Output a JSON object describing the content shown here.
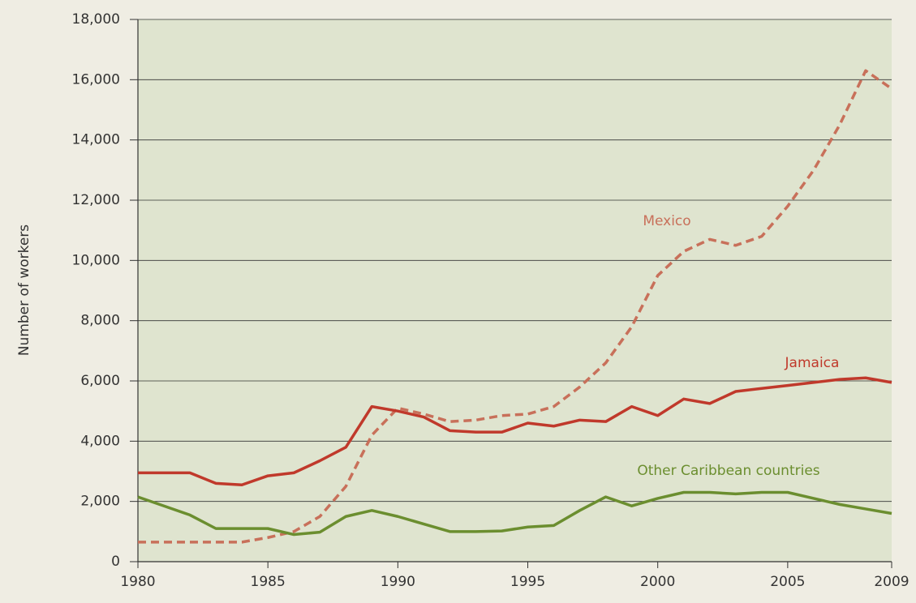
{
  "chart_data": {
    "type": "line",
    "y_label": "Number of workers",
    "x": [
      1980,
      1981,
      1982,
      1983,
      1984,
      1985,
      1986,
      1987,
      1988,
      1989,
      1990,
      1991,
      1992,
      1993,
      1994,
      1995,
      1996,
      1997,
      1998,
      1999,
      2000,
      2001,
      2002,
      2003,
      2004,
      2005,
      2006,
      2007,
      2008,
      2009
    ],
    "series": [
      {
        "name": "Mexico",
        "color": "#c8705a",
        "style": "dashed",
        "values": [
          650,
          650,
          650,
          650,
          650,
          800,
          1000,
          1500,
          2500,
          4200,
          5100,
          4900,
          4650,
          4700,
          4850,
          4900,
          5150,
          5800,
          6600,
          7800,
          9500,
          10300,
          10700,
          10500,
          10800,
          11800,
          13000,
          14500,
          16300,
          15700
        ]
      },
      {
        "name": "Jamaica",
        "color": "#c0392b",
        "style": "solid",
        "values": [
          2950,
          2950,
          2950,
          2600,
          2550,
          2850,
          2950,
          3350,
          3800,
          5150,
          5000,
          4800,
          4350,
          4300,
          4300,
          4600,
          4500,
          4700,
          4650,
          5150,
          4850,
          5400,
          5250,
          5650,
          5750,
          5850,
          5950,
          6050,
          6100,
          5950
        ]
      },
      {
        "name": "Other Caribbean countries",
        "color": "#6b8e2f",
        "style": "solid",
        "values": [
          2150,
          1850,
          1550,
          1100,
          1100,
          1100,
          900,
          980,
          1500,
          1700,
          1500,
          1250,
          1000,
          1000,
          1020,
          1150,
          1200,
          1700,
          2150,
          1850,
          2100,
          2300,
          2300,
          2250,
          2300,
          2300,
          2100,
          1900,
          1750,
          1600
        ]
      }
    ],
    "xlim": [
      1980,
      2009
    ],
    "xticks": [
      1980,
      1985,
      1990,
      1995,
      2000,
      2005,
      2009
    ],
    "ylim": [
      0,
      18000
    ],
    "yticks": [
      0,
      {
        "value": 2000,
        "label": "2,000"
      },
      {
        "value": 4000,
        "label": "4,000"
      },
      {
        "value": 6000,
        "label": "6,000"
      },
      {
        "value": 8000,
        "label": "8,000"
      },
      {
        "value": 10000,
        "label": "10,000"
      },
      {
        "value": 12000,
        "label": "12,000"
      },
      {
        "value": 14000,
        "label": "14,000"
      },
      {
        "value": 16000,
        "label": "16,000"
      },
      {
        "value": 18000,
        "label": "18,000"
      }
    ],
    "grid": true
  }
}
